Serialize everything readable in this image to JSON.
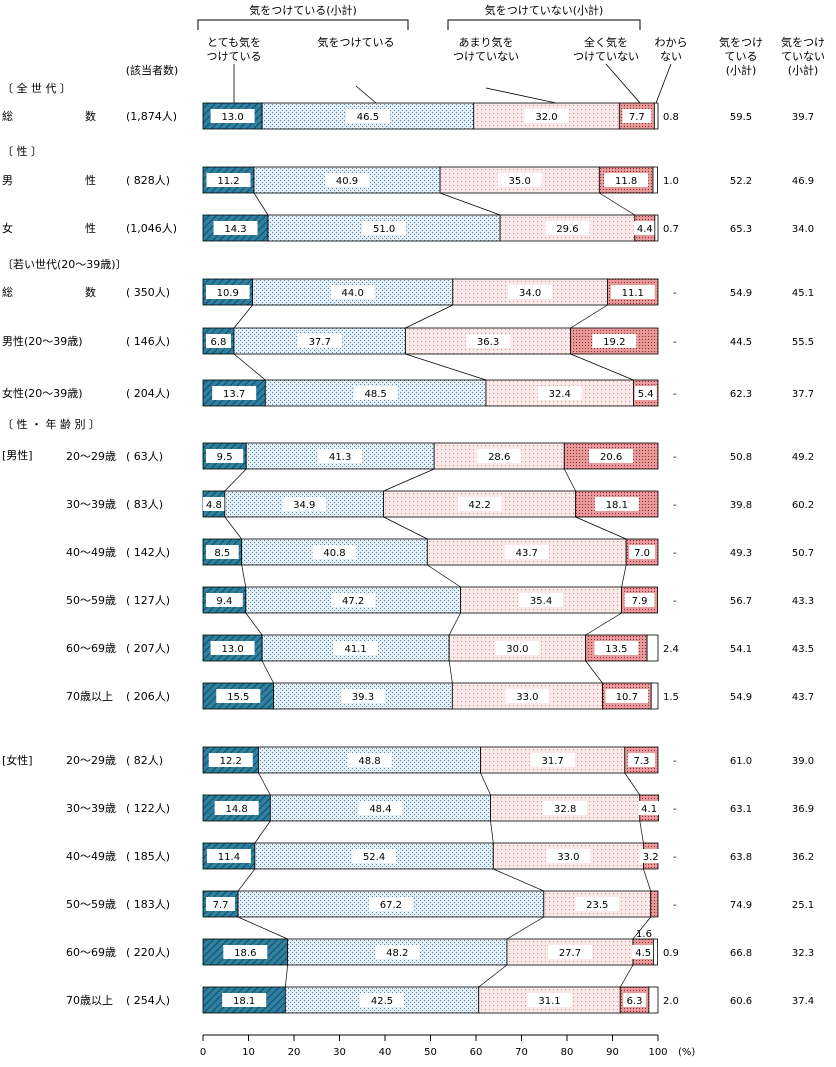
{
  "header": {
    "group_take_care": "気をつけている(小計)",
    "group_not_take_care": "気をつけていない(小計)",
    "cat1": [
      "とても気を",
      "つけている"
    ],
    "cat2": [
      "気をつけている"
    ],
    "cat3": [
      "あまり気を",
      "つけていない"
    ],
    "cat4": [
      "全く気を",
      "つけていない"
    ],
    "cat5": [
      "わから",
      "ない"
    ],
    "sub1": [
      "気をつけ",
      "ている",
      "(小計)"
    ],
    "sub2": [
      "気をつけ",
      "ていない",
      "(小計)"
    ],
    "n_header": "(該当者数)"
  },
  "colors": {
    "very": "#2e7fa0",
    "somewhat": "#dcebf5",
    "not_much": "#f8e3e3",
    "not_at_all": "#e89a9a",
    "dont_know": "#ffffff"
  },
  "chart_data": {
    "type": "bar",
    "orientation": "horizontal-stacked-100",
    "x_unit": "(%)",
    "xlim": [
      0,
      100
    ],
    "x_ticks": [
      0,
      10,
      20,
      30,
      40,
      50,
      60,
      70,
      80,
      90,
      100
    ],
    "series_names": [
      "とても気をつけている",
      "気をつけている",
      "あまり気をつけていない",
      "全く気をつけていない",
      "わからない"
    ],
    "section_labels": [
      {
        "label": "〔 全 世 代 〕"
      },
      {
        "label": "〔 性 〕"
      },
      {
        "label": "〔若い世代(20〜39歳)〕"
      },
      {
        "label": "〔 性 ・ 年 齢 別 〕"
      }
    ],
    "group_labels": [
      {
        "label": "[男性]"
      },
      {
        "label": "[女性]"
      }
    ],
    "rows": [
      {
        "label": "総 数",
        "n": "(1,874人)",
        "values": [
          13.0,
          46.5,
          32.0,
          7.7,
          0.8
        ],
        "labels": [
          "13.0",
          "46.5",
          "32.0",
          "7.7",
          "0.8"
        ],
        "sub_care": "59.5",
        "sub_not": "39.7"
      },
      {
        "label": "男 性",
        "n": "( 828人)",
        "values": [
          11.2,
          40.9,
          35.0,
          11.8,
          1.0
        ],
        "labels": [
          "11.2",
          "40.9",
          "35.0",
          "11.8",
          "1.0"
        ],
        "sub_care": "52.2",
        "sub_not": "46.9"
      },
      {
        "label": "女 性",
        "n": "(1,046人)",
        "values": [
          14.3,
          51.0,
          29.6,
          4.4,
          0.7
        ],
        "labels": [
          "14.3",
          "51.0",
          "29.6",
          "4.4",
          "0.7"
        ],
        "sub_care": "65.3",
        "sub_not": "34.0"
      },
      {
        "label": "総 数",
        "n": "( 350人)",
        "values": [
          10.9,
          44.0,
          34.0,
          11.1,
          0
        ],
        "labels": [
          "10.9",
          "44.0",
          "34.0",
          "11.1",
          "-"
        ],
        "sub_care": "54.9",
        "sub_not": "45.1"
      },
      {
        "label": "男性(20〜39歳)",
        "n": "( 146人)",
        "values": [
          6.8,
          37.7,
          36.3,
          19.2,
          0
        ],
        "labels": [
          "6.8",
          "37.7",
          "36.3",
          "19.2",
          "-"
        ],
        "sub_care": "44.5",
        "sub_not": "55.5"
      },
      {
        "label": "女性(20〜39歳)",
        "n": "( 204人)",
        "values": [
          13.7,
          48.5,
          32.4,
          5.4,
          0
        ],
        "labels": [
          "13.7",
          "48.5",
          "32.4",
          "5.4",
          "-"
        ],
        "sub_care": "62.3",
        "sub_not": "37.7"
      },
      {
        "label": "20〜29歳",
        "n": "( 63人)",
        "values": [
          9.5,
          41.3,
          28.6,
          20.6,
          0
        ],
        "labels": [
          "9.5",
          "41.3",
          "28.6",
          "20.6",
          "-"
        ],
        "sub_care": "50.8",
        "sub_not": "49.2"
      },
      {
        "label": "30〜39歳",
        "n": "( 83人)",
        "values": [
          4.8,
          34.9,
          42.2,
          18.1,
          0
        ],
        "labels": [
          "4.8",
          "34.9",
          "42.2",
          "18.1",
          "-"
        ],
        "sub_care": "39.8",
        "sub_not": "60.2"
      },
      {
        "label": "40〜49歳",
        "n": "( 142人)",
        "values": [
          8.5,
          40.8,
          43.7,
          7.0,
          0
        ],
        "labels": [
          "8.5",
          "40.8",
          "43.7",
          "7.0",
          "-"
        ],
        "sub_care": "49.3",
        "sub_not": "50.7"
      },
      {
        "label": "50〜59歳",
        "n": "( 127人)",
        "values": [
          9.4,
          47.2,
          35.4,
          7.9,
          0
        ],
        "labels": [
          "9.4",
          "47.2",
          "35.4",
          "7.9",
          "-"
        ],
        "sub_care": "56.7",
        "sub_not": "43.3"
      },
      {
        "label": "60〜69歳",
        "n": "( 207人)",
        "values": [
          13.0,
          41.1,
          30.0,
          13.5,
          2.4
        ],
        "labels": [
          "13.0",
          "41.1",
          "30.0",
          "13.5",
          "2.4"
        ],
        "sub_care": "54.1",
        "sub_not": "43.5"
      },
      {
        "label": "70歳以上",
        "n": "( 206人)",
        "values": [
          15.5,
          39.3,
          33.0,
          10.7,
          1.5
        ],
        "labels": [
          "15.5",
          "39.3",
          "33.0",
          "10.7",
          "1.5"
        ],
        "sub_care": "54.9",
        "sub_not": "43.7"
      },
      {
        "label": "20〜29歳",
        "n": "( 82人)",
        "values": [
          12.2,
          48.8,
          31.7,
          7.3,
          0
        ],
        "labels": [
          "12.2",
          "48.8",
          "31.7",
          "7.3",
          "-"
        ],
        "sub_care": "61.0",
        "sub_not": "39.0"
      },
      {
        "label": "30〜39歳",
        "n": "( 122人)",
        "values": [
          14.8,
          48.4,
          32.8,
          4.1,
          0
        ],
        "labels": [
          "14.8",
          "48.4",
          "32.8",
          "4.1",
          "-"
        ],
        "sub_care": "63.1",
        "sub_not": "36.9"
      },
      {
        "label": "40〜49歳",
        "n": "( 185人)",
        "values": [
          11.4,
          52.4,
          33.0,
          3.2,
          0
        ],
        "labels": [
          "11.4",
          "52.4",
          "33.0",
          "3.2",
          "-"
        ],
        "sub_care": "63.8",
        "sub_not": "36.2"
      },
      {
        "label": "50〜59歳",
        "n": "( 183人)",
        "values": [
          7.7,
          67.2,
          23.5,
          1.6,
          0
        ],
        "labels": [
          "7.7",
          "67.2",
          "23.5",
          "1.6",
          "-"
        ],
        "sub_care": "74.9",
        "sub_not": "25.1"
      },
      {
        "label": "60〜69歳",
        "n": "( 220人)",
        "values": [
          18.6,
          48.2,
          27.7,
          4.5,
          0.9
        ],
        "labels": [
          "18.6",
          "48.2",
          "27.7",
          "4.5",
          "0.9"
        ],
        "sub_care": "66.8",
        "sub_not": "32.3"
      },
      {
        "label": "70歳以上",
        "n": "( 254人)",
        "values": [
          18.1,
          42.5,
          31.1,
          6.3,
          2.0
        ],
        "labels": [
          "18.1",
          "42.5",
          "31.1",
          "6.3",
          "2.0"
        ],
        "sub_care": "60.6",
        "sub_not": "37.4"
      }
    ]
  }
}
